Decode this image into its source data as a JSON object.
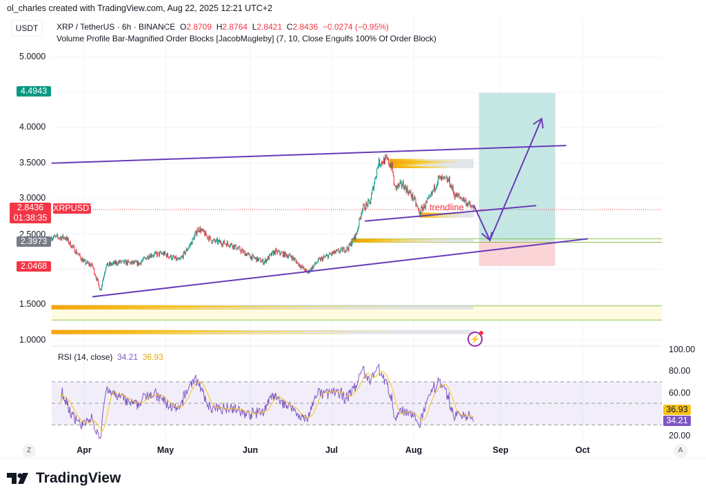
{
  "credit": "ol_charles created with TradingView.com, Aug 22, 2025 12:21 UTC+2",
  "legend": {
    "currency": "USDT",
    "symbol": "XRP / TetherUS · 6h · BINANCE",
    "o_label": "O",
    "o": "2.8709",
    "h_label": "H",
    "h": "2.8764",
    "l_label": "L",
    "l": "2.8421",
    "c_label": "C",
    "c": "2.8436",
    "change": "−0.0274 (−0.95%)",
    "indicator": "Volume Profile Bar-Magnified Order Blocks [JacobMagleby] (7, 10, Close Engulfs 100% Of Order Block)"
  },
  "price_axis": [
    "5.0000",
    "4.0000",
    "3.5000",
    "3.0000",
    "2.5000",
    "1.5000",
    "1.0000"
  ],
  "price_tags": {
    "target": "4.4943",
    "last": "2.8436",
    "countdown": "01:38:35",
    "symbol": "XRPUSDT",
    "entry": "2.3973",
    "stop": "2.0468"
  },
  "rsi": {
    "label": "RSI (14, close)",
    "value": "34.21",
    "ma": "36.93",
    "axis": [
      "100.00",
      "80.00",
      "60.00",
      "20.00"
    ],
    "bands": [
      70,
      50,
      30
    ]
  },
  "time_axis": [
    "Apr",
    "May",
    "Jun",
    "Jul",
    "Aug",
    "Sep",
    "Oct"
  ],
  "annotation": "trendline",
  "corner_left": "Z",
  "corner_right": "A",
  "brand": "TradingView",
  "colors": {
    "up": "#089981",
    "down": "#f23645",
    "drawing": "#673ab7",
    "rsi": "#7e57c2",
    "rsi_ma": "#f7c31a",
    "target_zone": "#b2dfdb",
    "stop_zone": "#f8c5c8"
  },
  "chart_data": {
    "type": "candlestick",
    "title": "XRP / TetherUS · 6h · BINANCE",
    "ylim": [
      0.95,
      5.3
    ],
    "x_range": [
      "2025-03-20",
      "2025-10-30"
    ],
    "grid": true,
    "approx_close_path": [
      [
        "2025-03-20",
        2.45
      ],
      [
        "2025-03-25",
        2.45
      ],
      [
        "2025-03-28",
        2.3
      ],
      [
        "2025-04-01",
        2.1
      ],
      [
        "2025-04-04",
        2.05
      ],
      [
        "2025-04-07",
        1.7
      ],
      [
        "2025-04-09",
        2.05
      ],
      [
        "2025-04-14",
        2.1
      ],
      [
        "2025-04-21",
        2.08
      ],
      [
        "2025-04-25",
        2.2
      ],
      [
        "2025-04-30",
        2.22
      ],
      [
        "2025-05-06",
        2.12
      ],
      [
        "2025-05-10",
        2.35
      ],
      [
        "2025-05-13",
        2.58
      ],
      [
        "2025-05-18",
        2.4
      ],
      [
        "2025-05-25",
        2.35
      ],
      [
        "2025-06-01",
        2.18
      ],
      [
        "2025-06-06",
        2.1
      ],
      [
        "2025-06-10",
        2.25
      ],
      [
        "2025-06-16",
        2.18
      ],
      [
        "2025-06-22",
        1.95
      ],
      [
        "2025-06-26",
        2.12
      ],
      [
        "2025-07-01",
        2.22
      ],
      [
        "2025-07-07",
        2.3
      ],
      [
        "2025-07-10",
        2.5
      ],
      [
        "2025-07-12",
        2.85
      ],
      [
        "2025-07-15",
        2.95
      ],
      [
        "2025-07-18",
        3.5
      ],
      [
        "2025-07-21",
        3.55
      ],
      [
        "2025-07-23",
        3.45
      ],
      [
        "2025-07-24",
        3.15
      ],
      [
        "2025-07-27",
        3.2
      ],
      [
        "2025-07-31",
        3.0
      ],
      [
        "2025-08-02",
        2.8
      ],
      [
        "2025-08-06",
        3.0
      ],
      [
        "2025-08-09",
        3.28
      ],
      [
        "2025-08-13",
        3.25
      ],
      [
        "2025-08-15",
        3.05
      ],
      [
        "2025-08-18",
        3.0
      ],
      [
        "2025-08-22",
        2.8436
      ]
    ],
    "current_price": 2.8436,
    "drawings": {
      "channel_top": [
        [
          "2025-03-20",
          3.5
        ],
        [
          "2025-09-25",
          3.75
        ]
      ],
      "channel_bottom": [
        [
          "2025-04-04",
          1.61
        ],
        [
          "2025-10-03",
          2.43
        ]
      ],
      "trendline": [
        [
          "2025-07-13",
          2.68
        ],
        [
          "2025-09-14",
          2.9
        ]
      ],
      "path_arrow": [
        [
          "2025-08-22",
          2.91
        ],
        [
          "2025-08-28",
          2.41
        ],
        [
          "2025-09-16",
          4.13
        ]
      ],
      "long_position": {
        "start": "2025-08-24",
        "end": "2025-09-21",
        "entry": 2.3973,
        "target": 4.4943,
        "stop": 2.0468
      }
    },
    "order_blocks": [
      {
        "start": "2025-07-22",
        "end": "2025-08-22",
        "low": 3.43,
        "high": 3.56
      },
      {
        "start": "2025-08-02",
        "end": "2025-08-22",
        "low": 2.73,
        "high": 2.8
      },
      {
        "start": "2025-07-08",
        "end": "2025-08-22",
        "low": 2.38,
        "high": 2.43
      },
      {
        "start": "2025-03-20",
        "end": "2025-08-22",
        "low": 1.43,
        "high": 1.49
      },
      {
        "start": "2025-03-20",
        "end": "2025-08-22",
        "low": 1.08,
        "high": 1.14
      }
    ]
  }
}
